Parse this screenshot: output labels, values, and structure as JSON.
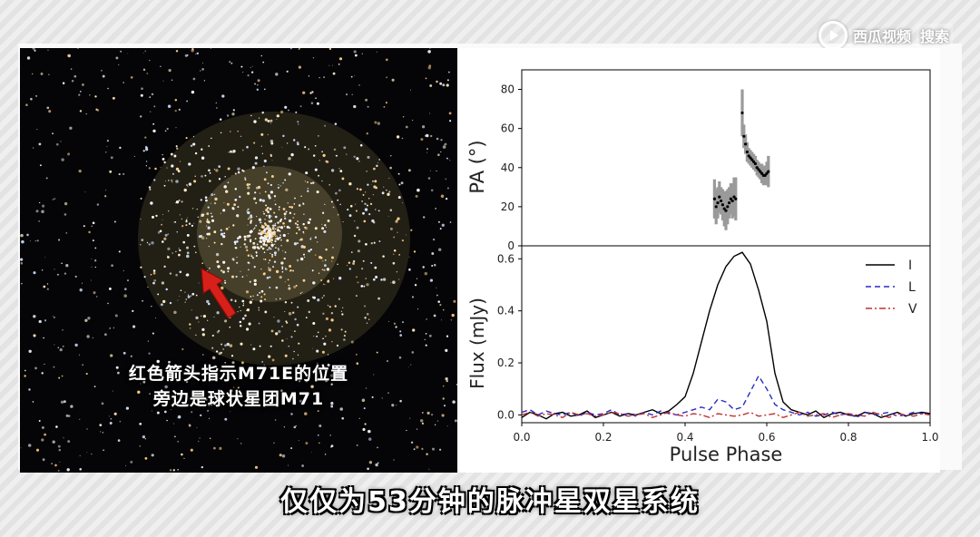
{
  "watermark": {
    "text1": "西瓜视频",
    "text2": "搜索"
  },
  "photo": {
    "caption_line1": "红色箭头指示M71E的位置",
    "caption_line2": "旁边是球状星团M71",
    "arrow_icon": "red-arrow-icon"
  },
  "subtitle": "仅仅为53分钟的脉冲星双星系统",
  "colors": {
    "I": "#000000",
    "L": "#2a2ac8",
    "V": "#c03030",
    "pa_band": "#9a9a9a"
  },
  "chart_data": [
    {
      "type": "scatter",
      "ylabel": "PA (°)",
      "ylim": [
        0,
        90
      ],
      "xlim": [
        0.0,
        1.0
      ],
      "yticks": [
        "0",
        "20",
        "40",
        "60",
        "80"
      ],
      "y_tick_values": [
        0,
        20,
        40,
        60,
        80
      ],
      "series": [
        {
          "x": [
            0.472,
            0.476,
            0.48,
            0.484,
            0.488,
            0.492,
            0.496,
            0.5,
            0.504,
            0.508,
            0.512,
            0.516,
            0.52,
            0.524
          ],
          "y": [
            24,
            20,
            22,
            25,
            23,
            21,
            19,
            18,
            20,
            22,
            24,
            23,
            25,
            24
          ],
          "err": [
            10,
            9,
            8,
            8,
            7,
            8,
            9,
            10,
            9,
            8,
            8,
            9,
            10,
            11
          ]
        },
        {
          "x": [
            0.54,
            0.544,
            0.548,
            0.552,
            0.556,
            0.56,
            0.564,
            0.568,
            0.572,
            0.576,
            0.58,
            0.584,
            0.588,
            0.592,
            0.596,
            0.6,
            0.604
          ],
          "y": [
            68,
            56,
            52,
            48,
            46,
            45,
            44,
            43,
            42,
            40,
            39,
            38,
            37,
            36,
            36,
            37,
            38
          ],
          "err": [
            12,
            6,
            5,
            5,
            4,
            4,
            4,
            4,
            4,
            4,
            4,
            4,
            5,
            5,
            5,
            6,
            8
          ]
        }
      ]
    },
    {
      "type": "line",
      "xlabel": "Pulse Phase",
      "ylabel": "Flux (mJy)",
      "ylim": [
        -0.03,
        0.65
      ],
      "xlim": [
        0.0,
        1.0
      ],
      "xticks": [
        "0.0",
        "0.2",
        "0.4",
        "0.6",
        "0.8",
        "1.0"
      ],
      "x_tick_values": [
        0.0,
        0.2,
        0.4,
        0.6,
        0.8,
        1.0
      ],
      "yticks": [
        "0.0",
        "0.2",
        "0.4",
        "0.6"
      ],
      "y_tick_values": [
        0.0,
        0.2,
        0.4,
        0.6
      ],
      "legend_position": "top-right",
      "series": [
        {
          "name": "I",
          "style": "solid",
          "x": [
            0.0,
            0.02,
            0.04,
            0.06,
            0.08,
            0.1,
            0.12,
            0.14,
            0.16,
            0.18,
            0.2,
            0.22,
            0.24,
            0.26,
            0.28,
            0.3,
            0.32,
            0.34,
            0.36,
            0.38,
            0.4,
            0.42,
            0.44,
            0.46,
            0.48,
            0.5,
            0.52,
            0.54,
            0.56,
            0.58,
            0.6,
            0.62,
            0.64,
            0.66,
            0.68,
            0.7,
            0.72,
            0.74,
            0.76,
            0.78,
            0.8,
            0.82,
            0.84,
            0.86,
            0.88,
            0.9,
            0.92,
            0.94,
            0.96,
            0.98,
            1.0
          ],
          "y": [
            -0.01,
            0.01,
            0.0,
            -0.015,
            0.005,
            0.01,
            -0.005,
            0.0,
            0.015,
            -0.01,
            0.0,
            0.01,
            -0.005,
            0.005,
            0.0,
            0.01,
            0.02,
            0.005,
            0.015,
            0.04,
            0.07,
            0.16,
            0.28,
            0.4,
            0.5,
            0.57,
            0.61,
            0.625,
            0.58,
            0.48,
            0.36,
            0.16,
            0.05,
            0.02,
            0.01,
            0.0,
            0.015,
            -0.01,
            0.005,
            0.01,
            0.0,
            -0.005,
            0.01,
            0.005,
            -0.01,
            0.0,
            0.01,
            -0.005,
            0.005,
            0.01,
            0.005
          ]
        },
        {
          "name": "L",
          "style": "dashed",
          "x": [
            0.0,
            0.02,
            0.04,
            0.06,
            0.08,
            0.1,
            0.12,
            0.14,
            0.16,
            0.18,
            0.2,
            0.22,
            0.24,
            0.26,
            0.28,
            0.3,
            0.32,
            0.34,
            0.36,
            0.38,
            0.4,
            0.42,
            0.44,
            0.46,
            0.48,
            0.5,
            0.52,
            0.54,
            0.56,
            0.58,
            0.6,
            0.62,
            0.64,
            0.66,
            0.68,
            0.7,
            0.72,
            0.74,
            0.76,
            0.78,
            0.8,
            0.82,
            0.84,
            0.86,
            0.88,
            0.9,
            0.92,
            0.94,
            0.96,
            0.98,
            1.0
          ],
          "y": [
            0.01,
            0.02,
            0.0,
            0.015,
            0.005,
            0.0,
            0.01,
            -0.005,
            0.01,
            0.0,
            0.005,
            0.02,
            0.0,
            0.005,
            -0.005,
            0.01,
            0.0,
            0.015,
            0.005,
            0.0,
            0.01,
            0.02,
            0.03,
            0.02,
            0.06,
            0.05,
            0.02,
            0.03,
            0.09,
            0.15,
            0.1,
            0.04,
            0.02,
            0.01,
            0.0,
            0.01,
            -0.005,
            0.0,
            0.01,
            0.0,
            0.005,
            -0.01,
            0.01,
            0.0,
            0.005,
            0.01,
            -0.005,
            0.0,
            0.01,
            0.005,
            0.0
          ]
        },
        {
          "name": "V",
          "style": "dashdot",
          "x": [
            0.0,
            0.02,
            0.04,
            0.06,
            0.08,
            0.1,
            0.12,
            0.14,
            0.16,
            0.18,
            0.2,
            0.22,
            0.24,
            0.26,
            0.28,
            0.3,
            0.32,
            0.34,
            0.36,
            0.38,
            0.4,
            0.42,
            0.44,
            0.46,
            0.48,
            0.5,
            0.52,
            0.54,
            0.56,
            0.58,
            0.6,
            0.62,
            0.64,
            0.66,
            0.68,
            0.7,
            0.72,
            0.74,
            0.76,
            0.78,
            0.8,
            0.82,
            0.84,
            0.86,
            0.88,
            0.9,
            0.92,
            0.94,
            0.96,
            0.98,
            1.0
          ],
          "y": [
            0.0,
            0.01,
            -0.005,
            0.005,
            0.0,
            -0.01,
            0.01,
            0.0,
            0.005,
            -0.005,
            0.0,
            0.01,
            0.005,
            -0.005,
            0.0,
            0.005,
            -0.01,
            0.0,
            0.01,
            0.0,
            -0.005,
            0.005,
            0.0,
            -0.01,
            0.005,
            0.0,
            -0.005,
            0.0,
            0.01,
            -0.005,
            0.0,
            0.005,
            -0.01,
            0.0,
            0.01,
            -0.005,
            0.0,
            0.005,
            -0.01,
            0.0,
            0.005,
            0.0,
            -0.005,
            0.01,
            0.0,
            -0.01,
            0.005,
            0.0,
            -0.005,
            0.005,
            0.0
          ]
        }
      ]
    }
  ]
}
